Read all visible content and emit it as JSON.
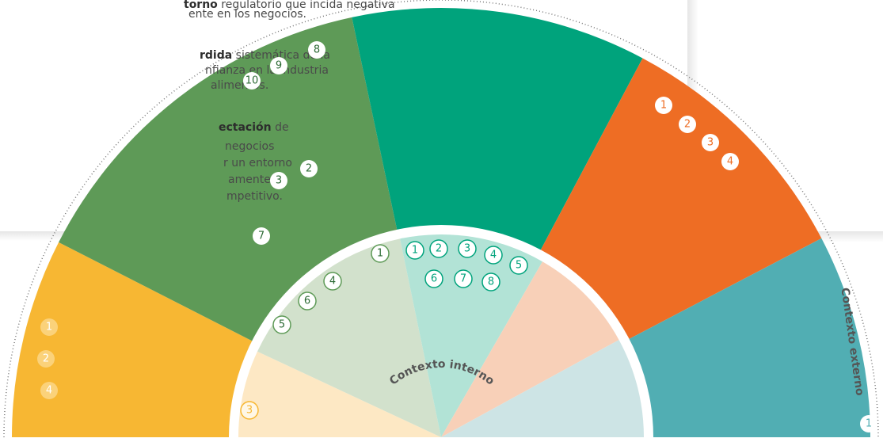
{
  "intro": [
    {
      "lines": [
        {
          "bold": "torno",
          "rest": " regulatorio que incida negativa"
        },
        {
          "rest": "ente en los negocios."
        }
      ]
    },
    {
      "lines": [
        {
          "bold": "rdida",
          "rest": " sistemática de la"
        },
        {
          "rest": "nfianza en la industria"
        },
        {
          "rest": "alimentos."
        }
      ]
    },
    {
      "lines": [
        {
          "bold": "ectación",
          "rest": " de"
        },
        {
          "rest": "negocios"
        },
        {
          "rest": "r un entorno"
        },
        {
          "rest": "amente"
        },
        {
          "rest": "mpetitivo."
        }
      ]
    }
  ],
  "outer": [
    {
      "items": [
        1,
        2,
        4
      ]
    },
    {
      "items": [
        8,
        9,
        10,
        2,
        3,
        7
      ]
    },
    {
      "items": []
    },
    {
      "items": [
        1,
        2,
        3,
        4
      ]
    },
    {
      "items": [
        1
      ]
    }
  ],
  "inner": [
    {
      "items": [
        3
      ]
    },
    {
      "items": [
        1,
        4,
        6,
        5
      ]
    },
    {
      "items": [
        1,
        2,
        3,
        4,
        5,
        6,
        7,
        8
      ]
    },
    {
      "items": []
    },
    {
      "items": []
    }
  ],
  "labels": {
    "internal": "Contexto interno",
    "external": "Contexto externo"
  }
}
